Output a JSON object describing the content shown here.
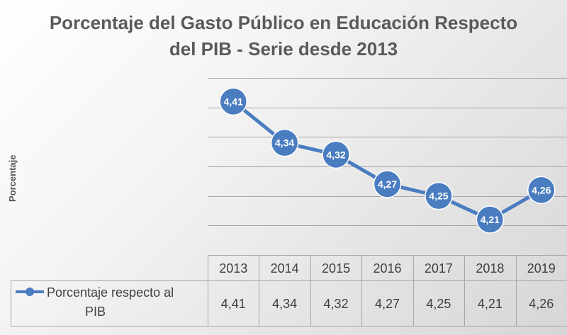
{
  "chart_data": {
    "type": "line",
    "title_line1": "Porcentaje del Gasto Público en Educación Respecto",
    "title_line2": "del PIB - Serie desde 2013",
    "ylabel": "Porcentaje",
    "xlabel": "",
    "categories": [
      "2013",
      "2014",
      "2015",
      "2016",
      "2017",
      "2018",
      "2019"
    ],
    "series": [
      {
        "name_line1": "Porcentaje respecto al",
        "name_line2": "PIB",
        "values": [
          4.41,
          4.34,
          4.32,
          4.27,
          4.25,
          4.21,
          4.26
        ],
        "labels": [
          "4,41",
          "4,34",
          "4,32",
          "4,27",
          "4,25",
          "4,21",
          "4,26"
        ]
      }
    ],
    "ylim": [
      4.15,
      4.45
    ],
    "grid": true,
    "data_table": true,
    "legend_placement": "data-table",
    "colors": {
      "series": "#4a7cc0",
      "marker_outline": "#ffffff",
      "grid": "#a6a6a6",
      "text": "#404040",
      "title": "#5a5a5a"
    }
  }
}
